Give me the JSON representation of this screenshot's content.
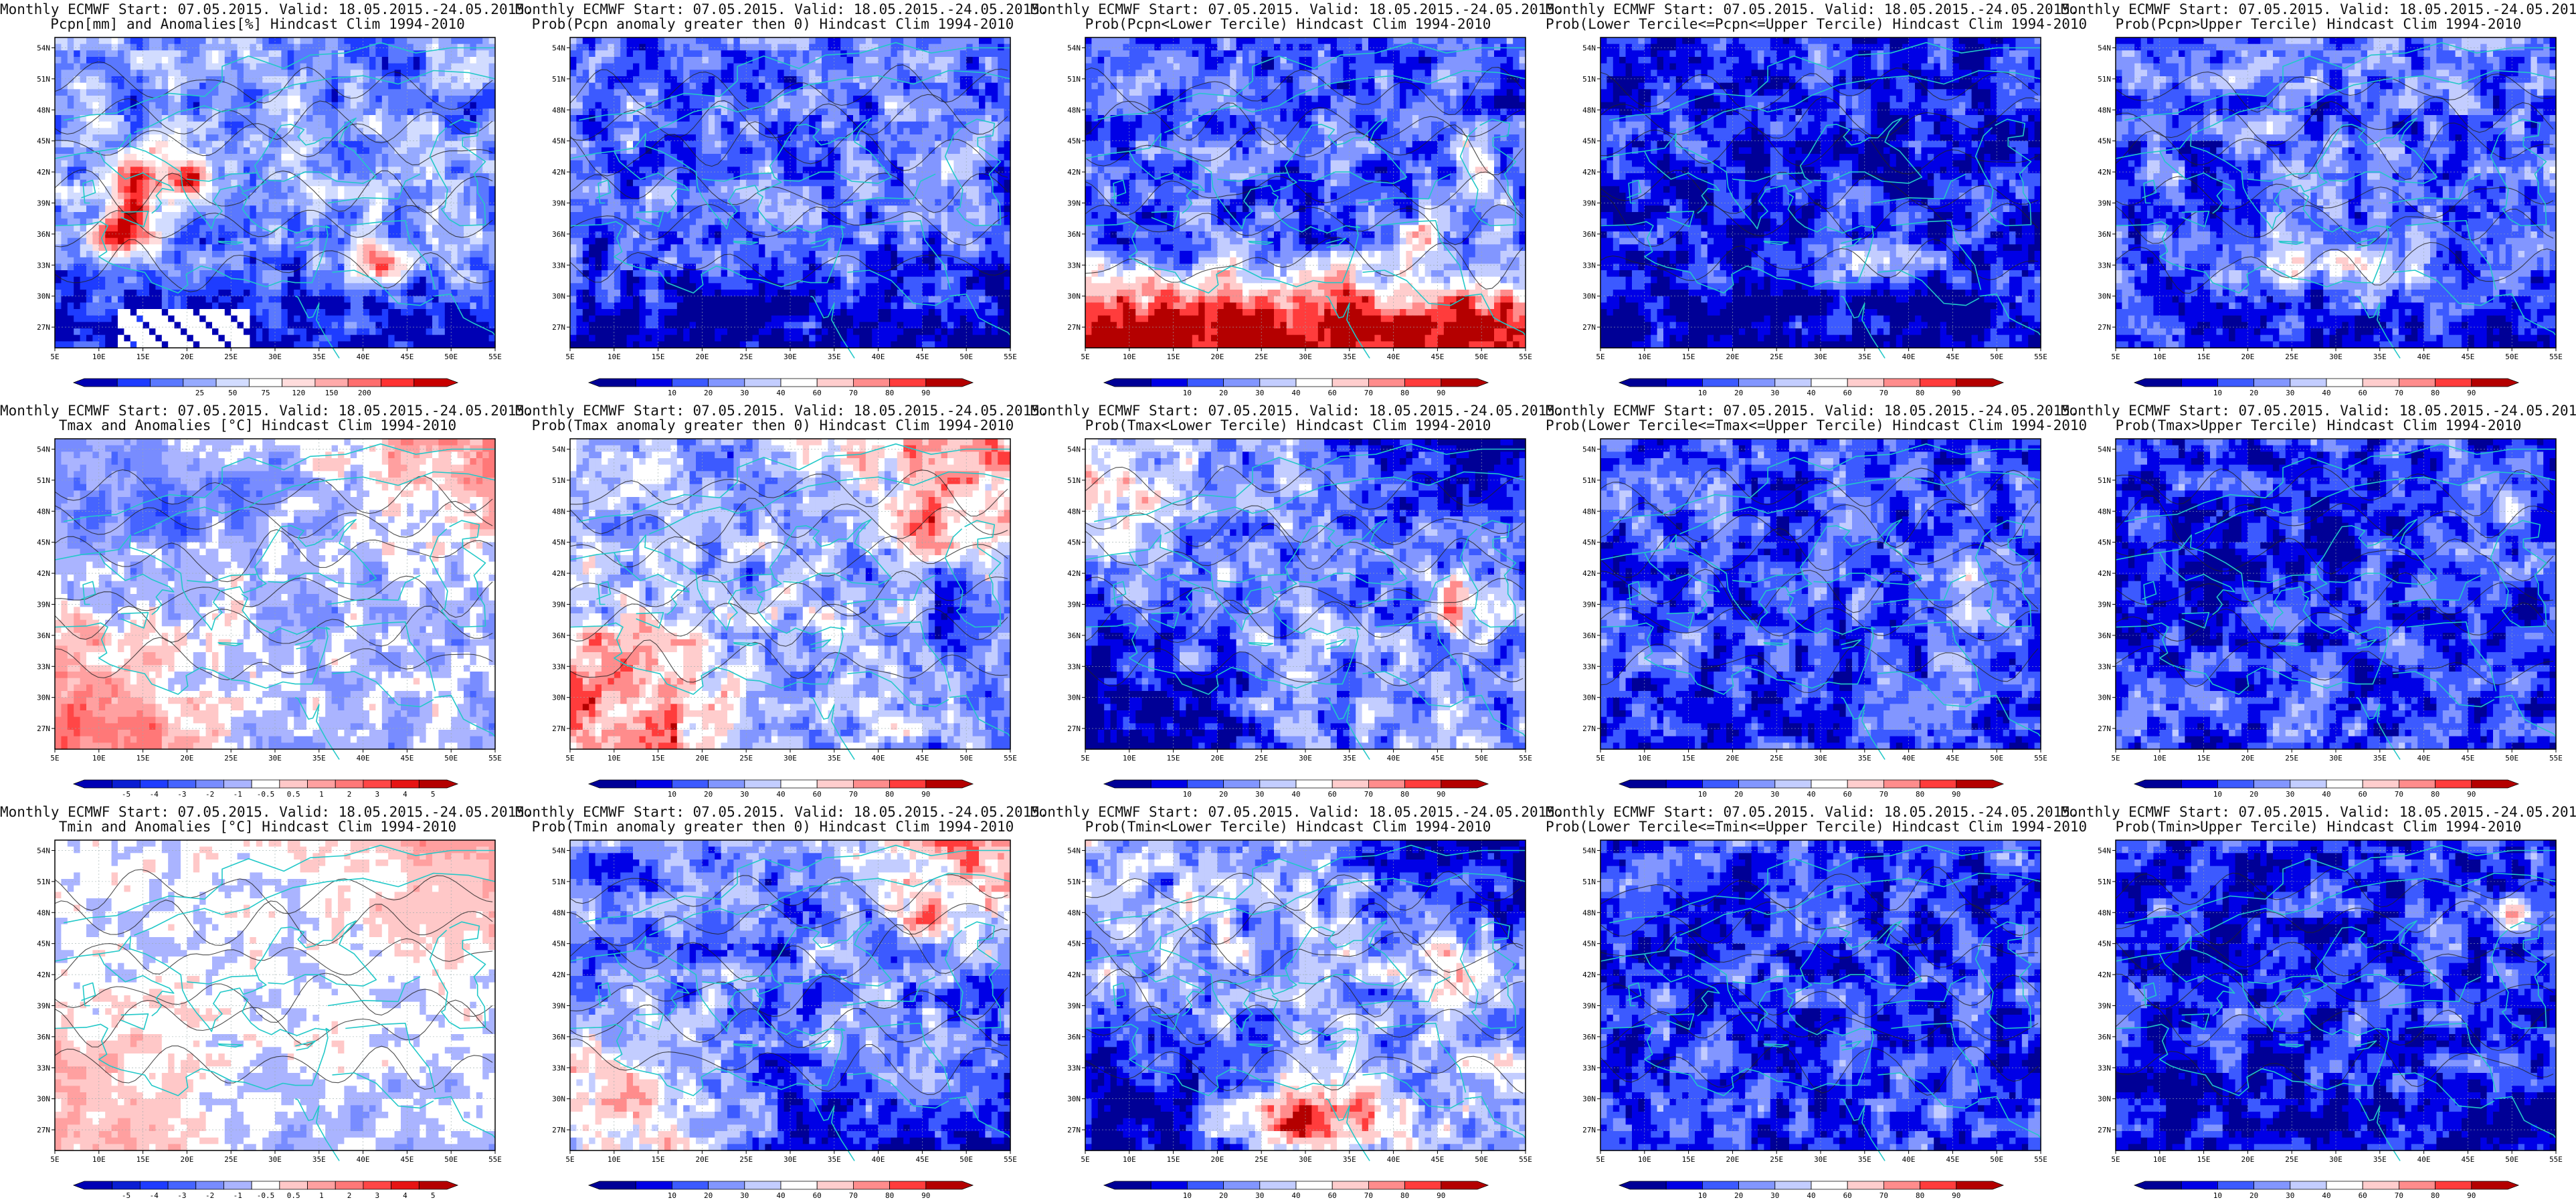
{
  "figure": {
    "panels": [
      {
        "row": 0,
        "col": 0,
        "title_line1": "Monthly ECMWF Start: 07.05.2015. Valid: 18.05.2015.-24.05.2015.",
        "title_line2": "Pcpn[mm] and Anomalies[%] Hindcast Clim 1994-2010",
        "field": "pcpn_anom",
        "colorbar": "pcpn_anomaly"
      },
      {
        "row": 0,
        "col": 1,
        "title_line1": "Monthly ECMWF Start: 07.05.2015. Valid: 18.05.2015.-24.05.2015.",
        "title_line2": "Prob(Pcpn anomaly greater then 0) Hindcast Clim 1994-2010",
        "field": "pcpn_gt0",
        "colorbar": "probability"
      },
      {
        "row": 0,
        "col": 2,
        "title_line1": "Monthly ECMWF Start: 07.05.2015. Valid: 18.05.2015.-24.05.2015.",
        "title_line2": "Prob(Pcpn<Lower Tercile) Hindcast Clim 1994-2010",
        "field": "pcpn_lower",
        "colorbar": "probability"
      },
      {
        "row": 0,
        "col": 3,
        "title_line1": "Monthly ECMWF Start: 07.05.2015. Valid: 18.05.2015.-24.05.2015.",
        "title_line2": "Prob(Lower Tercile<=Pcpn<=Upper Tercile) Hindcast Clim 1994-2010",
        "field": "pcpn_middle",
        "colorbar": "probability"
      },
      {
        "row": 0,
        "col": 4,
        "title_line1": "Monthly ECMWF Start: 07.05.2015. Valid: 18.05.2015.-24.05.2015.",
        "title_line2": "Prob(Pcpn>Upper Tercile) Hindcast Clim 1994-2010",
        "field": "pcpn_upper",
        "colorbar": "probability"
      },
      {
        "row": 1,
        "col": 0,
        "title_line1": "Monthly ECMWF Start: 07.05.2015. Valid: 18.05.2015.-24.05.2015.",
        "title_line2": "Tmax and Anomalies [°C] Hindcast Clim 1994-2010",
        "field": "tmax_anom",
        "colorbar": "temp_anomaly"
      },
      {
        "row": 1,
        "col": 1,
        "title_line1": "Monthly ECMWF Start: 07.05.2015. Valid: 18.05.2015.-24.05.2015.",
        "title_line2": "Prob(Tmax anomaly greater then 0) Hindcast Clim 1994-2010",
        "field": "tmax_gt0",
        "colorbar": "probability"
      },
      {
        "row": 1,
        "col": 2,
        "title_line1": "Monthly ECMWF Start: 07.05.2015. Valid: 18.05.2015.-24.05.2015.",
        "title_line2": "Prob(Tmax<Lower Tercile) Hindcast Clim 1994-2010",
        "field": "tmax_lower",
        "colorbar": "probability"
      },
      {
        "row": 1,
        "col": 3,
        "title_line1": "Monthly ECMWF Start: 07.05.2015. Valid: 18.05.2015.-24.05.2015.",
        "title_line2": "Prob(Lower Tercile<=Tmax<=Upper Tercile) Hindcast Clim 1994-2010",
        "field": "tmax_middle",
        "colorbar": "probability"
      },
      {
        "row": 1,
        "col": 4,
        "title_line1": "Monthly ECMWF Start: 07.05.2015. Valid: 18.05.2015.-24.05.2015.",
        "title_line2": "Prob(Tmax>Upper Tercile) Hindcast Clim 1994-2010",
        "field": "tmax_upper",
        "colorbar": "probability"
      },
      {
        "row": 2,
        "col": 0,
        "title_line1": "Monthly ECMWF Start: 07.05.2015. Valid: 18.05.2015.-24.05.2015.",
        "title_line2": "Tmin and Anomalies [°C] Hindcast Clim 1994-2010",
        "field": "tmin_anom",
        "colorbar": "temp_anomaly"
      },
      {
        "row": 2,
        "col": 1,
        "title_line1": "Monthly ECMWF Start: 07.05.2015. Valid: 18.05.2015.-24.05.2015.",
        "title_line2": "Prob(Tmin anomaly greater then 0) Hindcast Clim 1994-2010",
        "field": "tmin_gt0",
        "colorbar": "probability"
      },
      {
        "row": 2,
        "col": 2,
        "title_line1": "Monthly ECMWF Start: 07.05.2015. Valid: 18.05.2015.-24.05.2015.",
        "title_line2": "Prob(Tmin<Lower Tercile) Hindcast Clim 1994-2010",
        "field": "tmin_lower",
        "colorbar": "probability"
      },
      {
        "row": 2,
        "col": 3,
        "title_line1": "Monthly ECMWF Start: 07.05.2015. Valid: 18.05.2015.-24.05.2015.",
        "title_line2": "Prob(Lower Tercile<=Tmin<=Upper Tercile) Hindcast Clim 1994-2010",
        "field": "tmin_middle",
        "colorbar": "probability"
      },
      {
        "row": 2,
        "col": 4,
        "title_line1": "Monthly ECMWF Start: 07.05.2015. Valid: 18.05.2015.-24.05.2015.",
        "title_line2": "Prob(Tmin>Upper Tercile) Hindcast Clim 1994-2010",
        "field": "tmin_upper",
        "colorbar": "probability"
      }
    ],
    "map": {
      "lon_range": [
        5,
        55
      ],
      "lat_range": [
        25,
        55
      ],
      "lon_ticks": [
        "5E",
        "10E",
        "15E",
        "20E",
        "25E",
        "30E",
        "35E",
        "40E",
        "45E",
        "50E",
        "55E"
      ],
      "lat_ticks": [
        "27N",
        "30N",
        "33N",
        "36N",
        "39N",
        "42N",
        "45N",
        "48N",
        "51N",
        "54N"
      ],
      "coastline_color": "#22c8c8",
      "contour_color": "#222222"
    },
    "colorbars": {
      "pcpn_anomaly": {
        "labels": [
          "25",
          "50",
          "75",
          "120",
          "150",
          "200"
        ],
        "colors": [
          "#0000b4",
          "#1e3cff",
          "#5a78ff",
          "#96aaff",
          "#d2dcff",
          "#ffffff",
          "#ffdcdc",
          "#ffaaaa",
          "#ff6e6e",
          "#ff3232",
          "#c80000"
        ]
      },
      "temp_anomaly": {
        "labels": [
          "-5",
          "-4",
          "-3",
          "-2",
          "-1",
          "-0.5",
          "0.5",
          "1",
          "2",
          "3",
          "4",
          "5"
        ],
        "colors": [
          "#0000b4",
          "#0a1ed2",
          "#1e3cff",
          "#4664ff",
          "#788cff",
          "#aab4ff",
          "#ffffff",
          "#ffc8c8",
          "#ffa0a0",
          "#ff7878",
          "#ff4646",
          "#e61414",
          "#b40000"
        ]
      },
      "probability": {
        "labels": [
          "10",
          "20",
          "30",
          "40",
          "60",
          "70",
          "80",
          "90"
        ],
        "colors": [
          "#000096",
          "#0000e6",
          "#3c5aff",
          "#8296ff",
          "#c3cdff",
          "#ffffff",
          "#ffcdcd",
          "#ff8c8c",
          "#ff3c3c",
          "#b40000"
        ]
      }
    }
  }
}
